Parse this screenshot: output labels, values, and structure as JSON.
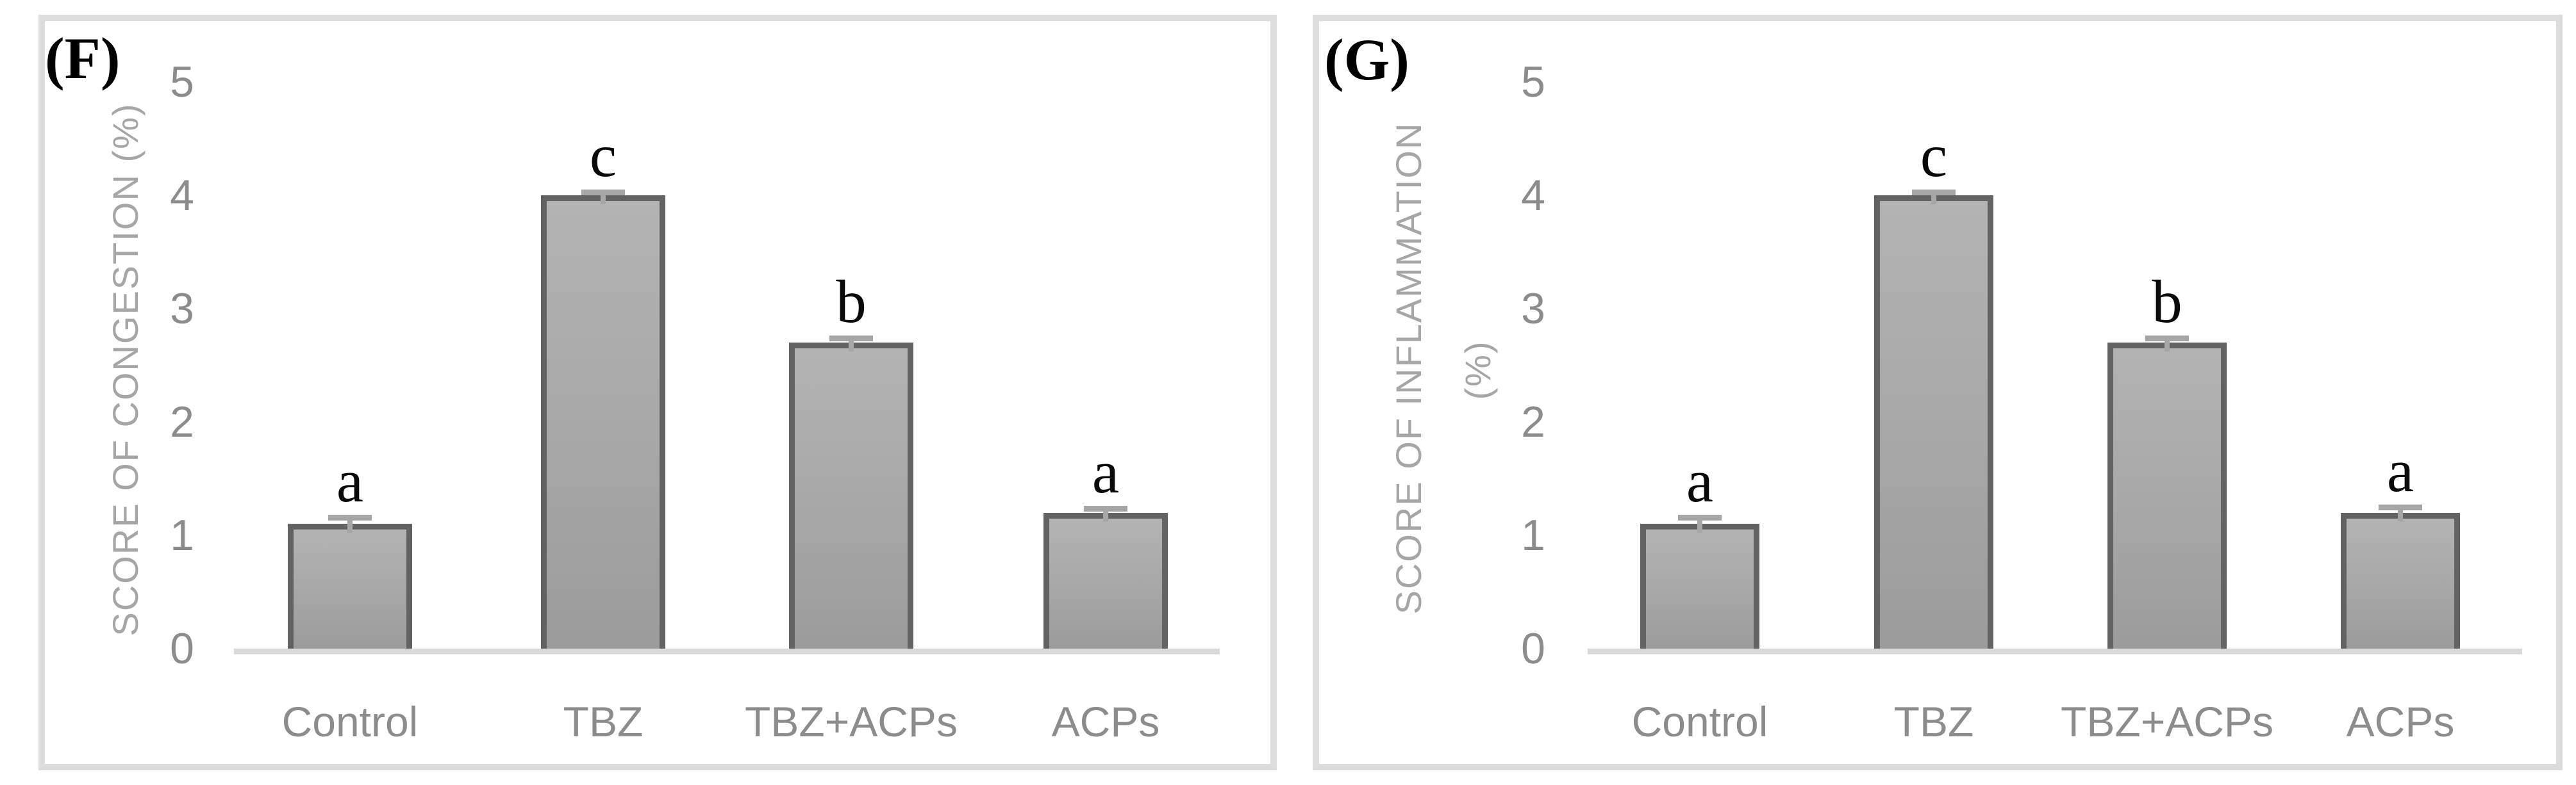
{
  "chart_data": [
    {
      "type": "bar",
      "panel_label": "(F)",
      "title": "",
      "xlabel": "",
      "ylabel": "SCORE OF CONGESTION (%)",
      "ylabel_lines": [
        "SCORE OF CONGESTION (%)"
      ],
      "categories": [
        "Control",
        "TBZ",
        "TBZ+ACPs",
        "ACPs"
      ],
      "values": [
        1.1,
        4.0,
        2.7,
        1.2
      ],
      "errors": [
        0.08,
        0.05,
        0.06,
        0.06
      ],
      "sig_letters": [
        "a",
        "c",
        "b",
        "a"
      ],
      "yticks": [
        0,
        1,
        2,
        3,
        4,
        5
      ],
      "ylim": [
        0,
        5
      ],
      "grid": false,
      "legend": "none"
    },
    {
      "type": "bar",
      "panel_label": "(G)",
      "title": "",
      "xlabel": "",
      "ylabel": "SCORE OF INFLAMMATION (%)",
      "ylabel_lines": [
        "SCORE OF INFLAMMATION",
        "(%)"
      ],
      "categories": [
        "Control",
        "TBZ",
        "TBZ+ACPs",
        "ACPs"
      ],
      "values": [
        1.1,
        4.0,
        2.7,
        1.2
      ],
      "errors": [
        0.08,
        0.05,
        0.06,
        0.07
      ],
      "sig_letters": [
        "a",
        "c",
        "b",
        "a"
      ],
      "yticks": [
        0,
        1,
        2,
        3,
        4,
        5
      ],
      "ylim": [
        0,
        5
      ],
      "grid": false,
      "legend": "none"
    }
  ],
  "colors": {
    "bar_fill_top": "#b4b3b3",
    "bar_fill_bottom": "#9c9b9b",
    "bar_border": "#636363",
    "error_bar": "#a6a6a6",
    "axis_line": "#d9d9d9",
    "tick_text": "#8c8c8c",
    "axis_label_text": "#a6a6a6",
    "panel_border": "#dcdcdc",
    "sig_letter_text": "#0a0a0a",
    "background": "#ffffff"
  }
}
